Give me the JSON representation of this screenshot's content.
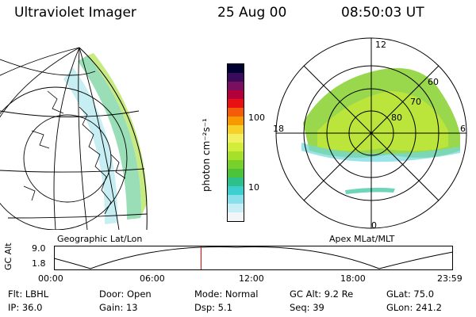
{
  "header": {
    "title": "Ultraviolet Imager",
    "date": "25 Aug 00",
    "time": "08:50:03 UT"
  },
  "geo_panel": {
    "label": "Geographic Lat/Lon"
  },
  "polar_panel": {
    "label": "Apex MLat/MLT",
    "mlt_labels": {
      "top": "12",
      "left": "18",
      "right": "6",
      "bottom": "0"
    },
    "lat_labels": [
      "60",
      "70",
      "80"
    ]
  },
  "colorbar": {
    "unit_label": "photon cm⁻²s⁻¹",
    "ticks": [
      "100",
      "10"
    ],
    "colors": [
      "#000033",
      "#3a0b5a",
      "#7a0f5f",
      "#b4003a",
      "#e81010",
      "#f25c0a",
      "#f79a00",
      "#f7d12a",
      "#f0f060",
      "#d2ee3a",
      "#a6e02a",
      "#7ad02a",
      "#4cc43a",
      "#2ec08a",
      "#3ccfd0",
      "#89e0ea",
      "#c8eef5",
      "#f3f6f8"
    ]
  },
  "altitude_plot": {
    "ylabel": "GC Alt",
    "y_ticks": [
      "9.0",
      "1.8"
    ],
    "x_ticks": [
      "00:00",
      "06:00",
      "12:00",
      "18:00",
      "23:59"
    ],
    "current_time_fraction": 0.3681
  },
  "info": {
    "row1": [
      "Flt: LBHL",
      "Door: Open",
      "Mode: Normal",
      "GC Alt: 9.2 Re",
      "GLat:  75.0"
    ],
    "row2": [
      "IP: 36.0",
      "Gain: 13",
      "Dsp:     5.1",
      "Seq: 39",
      "GLon: 241.2"
    ]
  }
}
